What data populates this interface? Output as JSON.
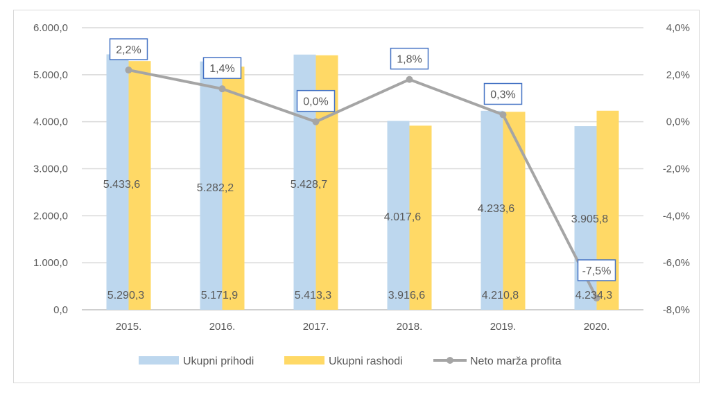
{
  "chart_data": {
    "type": "bar+line",
    "categories": [
      "2015.",
      "2016.",
      "2017.",
      "2018.",
      "2019.",
      "2020."
    ],
    "series": [
      {
        "name": "Ukupni prihodi",
        "type": "bar",
        "axis": "left",
        "color": "#BDD7EE",
        "values": [
          5433.6,
          5282.2,
          5428.7,
          4017.6,
          4233.6,
          3905.8
        ],
        "labels": [
          "5.433,6",
          "5.282,2",
          "5.428,7",
          "4.017,6",
          "4.233,6",
          "3.905,8"
        ]
      },
      {
        "name": "Ukupni rashodi",
        "type": "bar",
        "axis": "left",
        "color": "#FFD966",
        "values": [
          5290.3,
          5171.9,
          5413.3,
          3916.6,
          4210.8,
          4234.3
        ],
        "labels": [
          "5.290,3",
          "5.171,9",
          "5.413,3",
          "3.916,6",
          "4.210,8",
          "4.234,3"
        ]
      },
      {
        "name": "Neto marža profita",
        "type": "line",
        "axis": "right",
        "color": "#A5A5A5",
        "values": [
          2.2,
          1.4,
          0.0,
          1.8,
          0.3,
          -7.5
        ],
        "labels": [
          "2,2%",
          "1,4%",
          "0,0%",
          "1,8%",
          "0,3%",
          "-7,5%"
        ]
      }
    ],
    "y_left": {
      "ylim": [
        0,
        6000
      ],
      "ticks": [
        "0,0",
        "1.000,0",
        "2.000,0",
        "3.000,0",
        "4.000,0",
        "5.000,0",
        "6.000,0"
      ]
    },
    "y_right": {
      "ylim": [
        -8,
        4
      ],
      "ticks": [
        "-8,0%",
        "-6,0%",
        "-4,0%",
        "-2,0%",
        "0,0%",
        "2,0%",
        "4,0%"
      ]
    },
    "grid": true,
    "legend": "bottom",
    "label_box_color": "#4472C4"
  }
}
